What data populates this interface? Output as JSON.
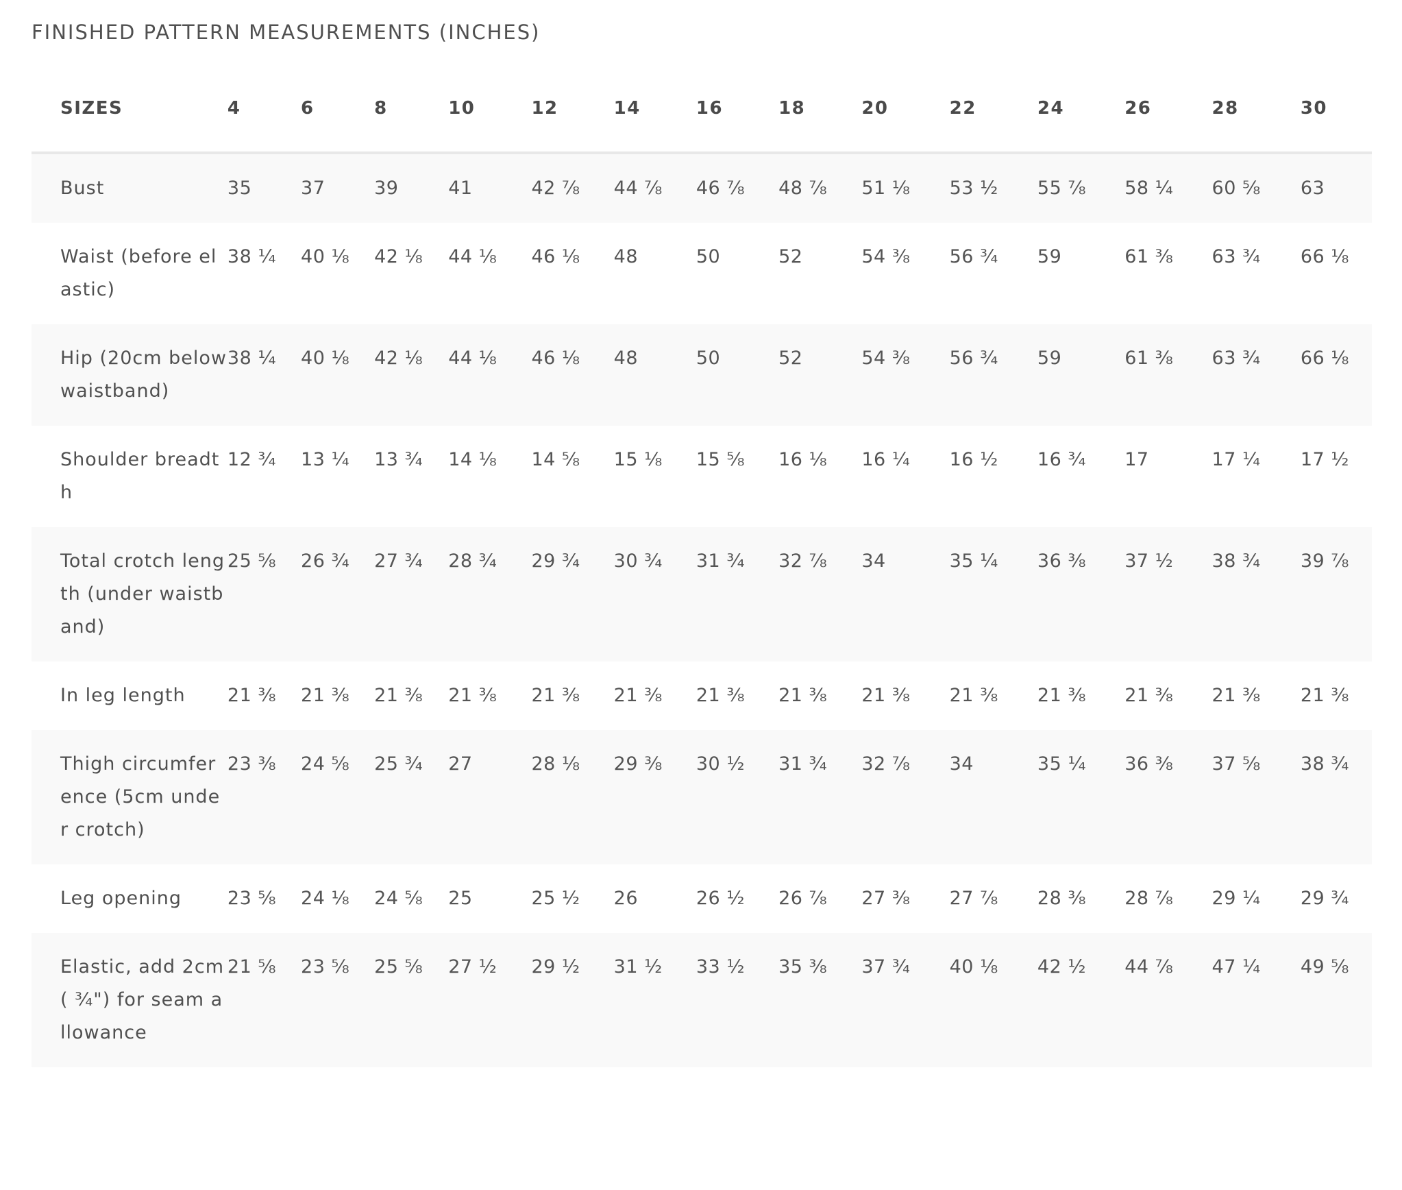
{
  "title": "FINISHED PATTERN MEASUREMENTS (INCHES)",
  "table": {
    "header_label": "SIZES",
    "sizes": [
      "4",
      "6",
      "8",
      "10",
      "12",
      "14",
      "16",
      "18",
      "20",
      "22",
      "24",
      "26",
      "28",
      "30"
    ],
    "rows": [
      {
        "label": "Bust",
        "values": [
          "35",
          "37",
          "39",
          "41",
          "42 ⅞",
          "44 ⅞",
          "46 ⅞",
          "48 ⅞",
          "51 ⅛",
          "53 ½",
          "55 ⅞",
          "58 ¼",
          "60 ⅝",
          "63"
        ]
      },
      {
        "label": "Waist (before elastic)",
        "values": [
          "38 ¼",
          "40 ⅛",
          "42 ⅛",
          "44 ⅛",
          "46 ⅛",
          "48",
          "50",
          "52",
          "54 ⅜",
          "56 ¾",
          "59",
          "61 ⅜",
          "63 ¾",
          "66 ⅛"
        ]
      },
      {
        "label": "Hip (20cm below waistband)",
        "values": [
          "38 ¼",
          "40 ⅛",
          "42 ⅛",
          "44 ⅛",
          "46 ⅛",
          "48",
          "50",
          "52",
          "54 ⅜",
          "56 ¾",
          "59",
          "61 ⅜",
          "63 ¾",
          "66 ⅛"
        ]
      },
      {
        "label": "Shoulder breadth",
        "values": [
          "12 ¾",
          "13 ¼",
          "13 ¾",
          "14 ⅛",
          "14 ⅝",
          "15 ⅛",
          "15 ⅝",
          "16 ⅛",
          "16 ¼",
          "16 ½",
          "16 ¾",
          "17",
          "17 ¼",
          "17 ½"
        ]
      },
      {
        "label": "Total crotch length (under waistband)",
        "values": [
          "25 ⅝",
          "26 ¾",
          "27 ¾",
          "28 ¾",
          "29 ¾",
          "30 ¾",
          "31 ¾",
          "32 ⅞",
          "34",
          "35 ¼",
          "36 ⅜",
          "37 ½",
          "38 ¾",
          "39 ⅞"
        ]
      },
      {
        "label": "In leg length",
        "values": [
          "21 ⅜",
          "21 ⅜",
          "21 ⅜",
          "21 ⅜",
          "21 ⅜",
          "21 ⅜",
          "21 ⅜",
          "21 ⅜",
          "21 ⅜",
          "21 ⅜",
          "21 ⅜",
          "21 ⅜",
          "21 ⅜",
          "21 ⅜"
        ]
      },
      {
        "label": "Thigh circumference (5cm under crotch)",
        "values": [
          "23 ⅜",
          "24 ⅝",
          "25 ¾",
          "27",
          "28 ⅛",
          "29 ⅜",
          "30 ½",
          "31 ¾",
          "32 ⅞",
          "34",
          "35 ¼",
          "36 ⅜",
          "37 ⅝",
          "38 ¾"
        ]
      },
      {
        "label": "Leg opening",
        "values": [
          "23 ⅝",
          "24 ⅛",
          "24 ⅝",
          "25",
          "25 ½",
          "26",
          "26 ½",
          "26 ⅞",
          "27 ⅜",
          "27 ⅞",
          "28 ⅜",
          "28 ⅞",
          "29 ¼",
          "29 ¾"
        ]
      },
      {
        "label": "Elastic, add 2cm ( ¾\") for seam allowance",
        "values": [
          "21 ⅝",
          "23 ⅝",
          "25 ⅝",
          "27 ½",
          "29 ½",
          "31 ½",
          "33 ½",
          "35 ⅜",
          "37 ¾",
          "40 ⅛",
          "42 ½",
          "44 ⅞",
          "47 ¼",
          "49 ⅝"
        ]
      }
    ]
  }
}
